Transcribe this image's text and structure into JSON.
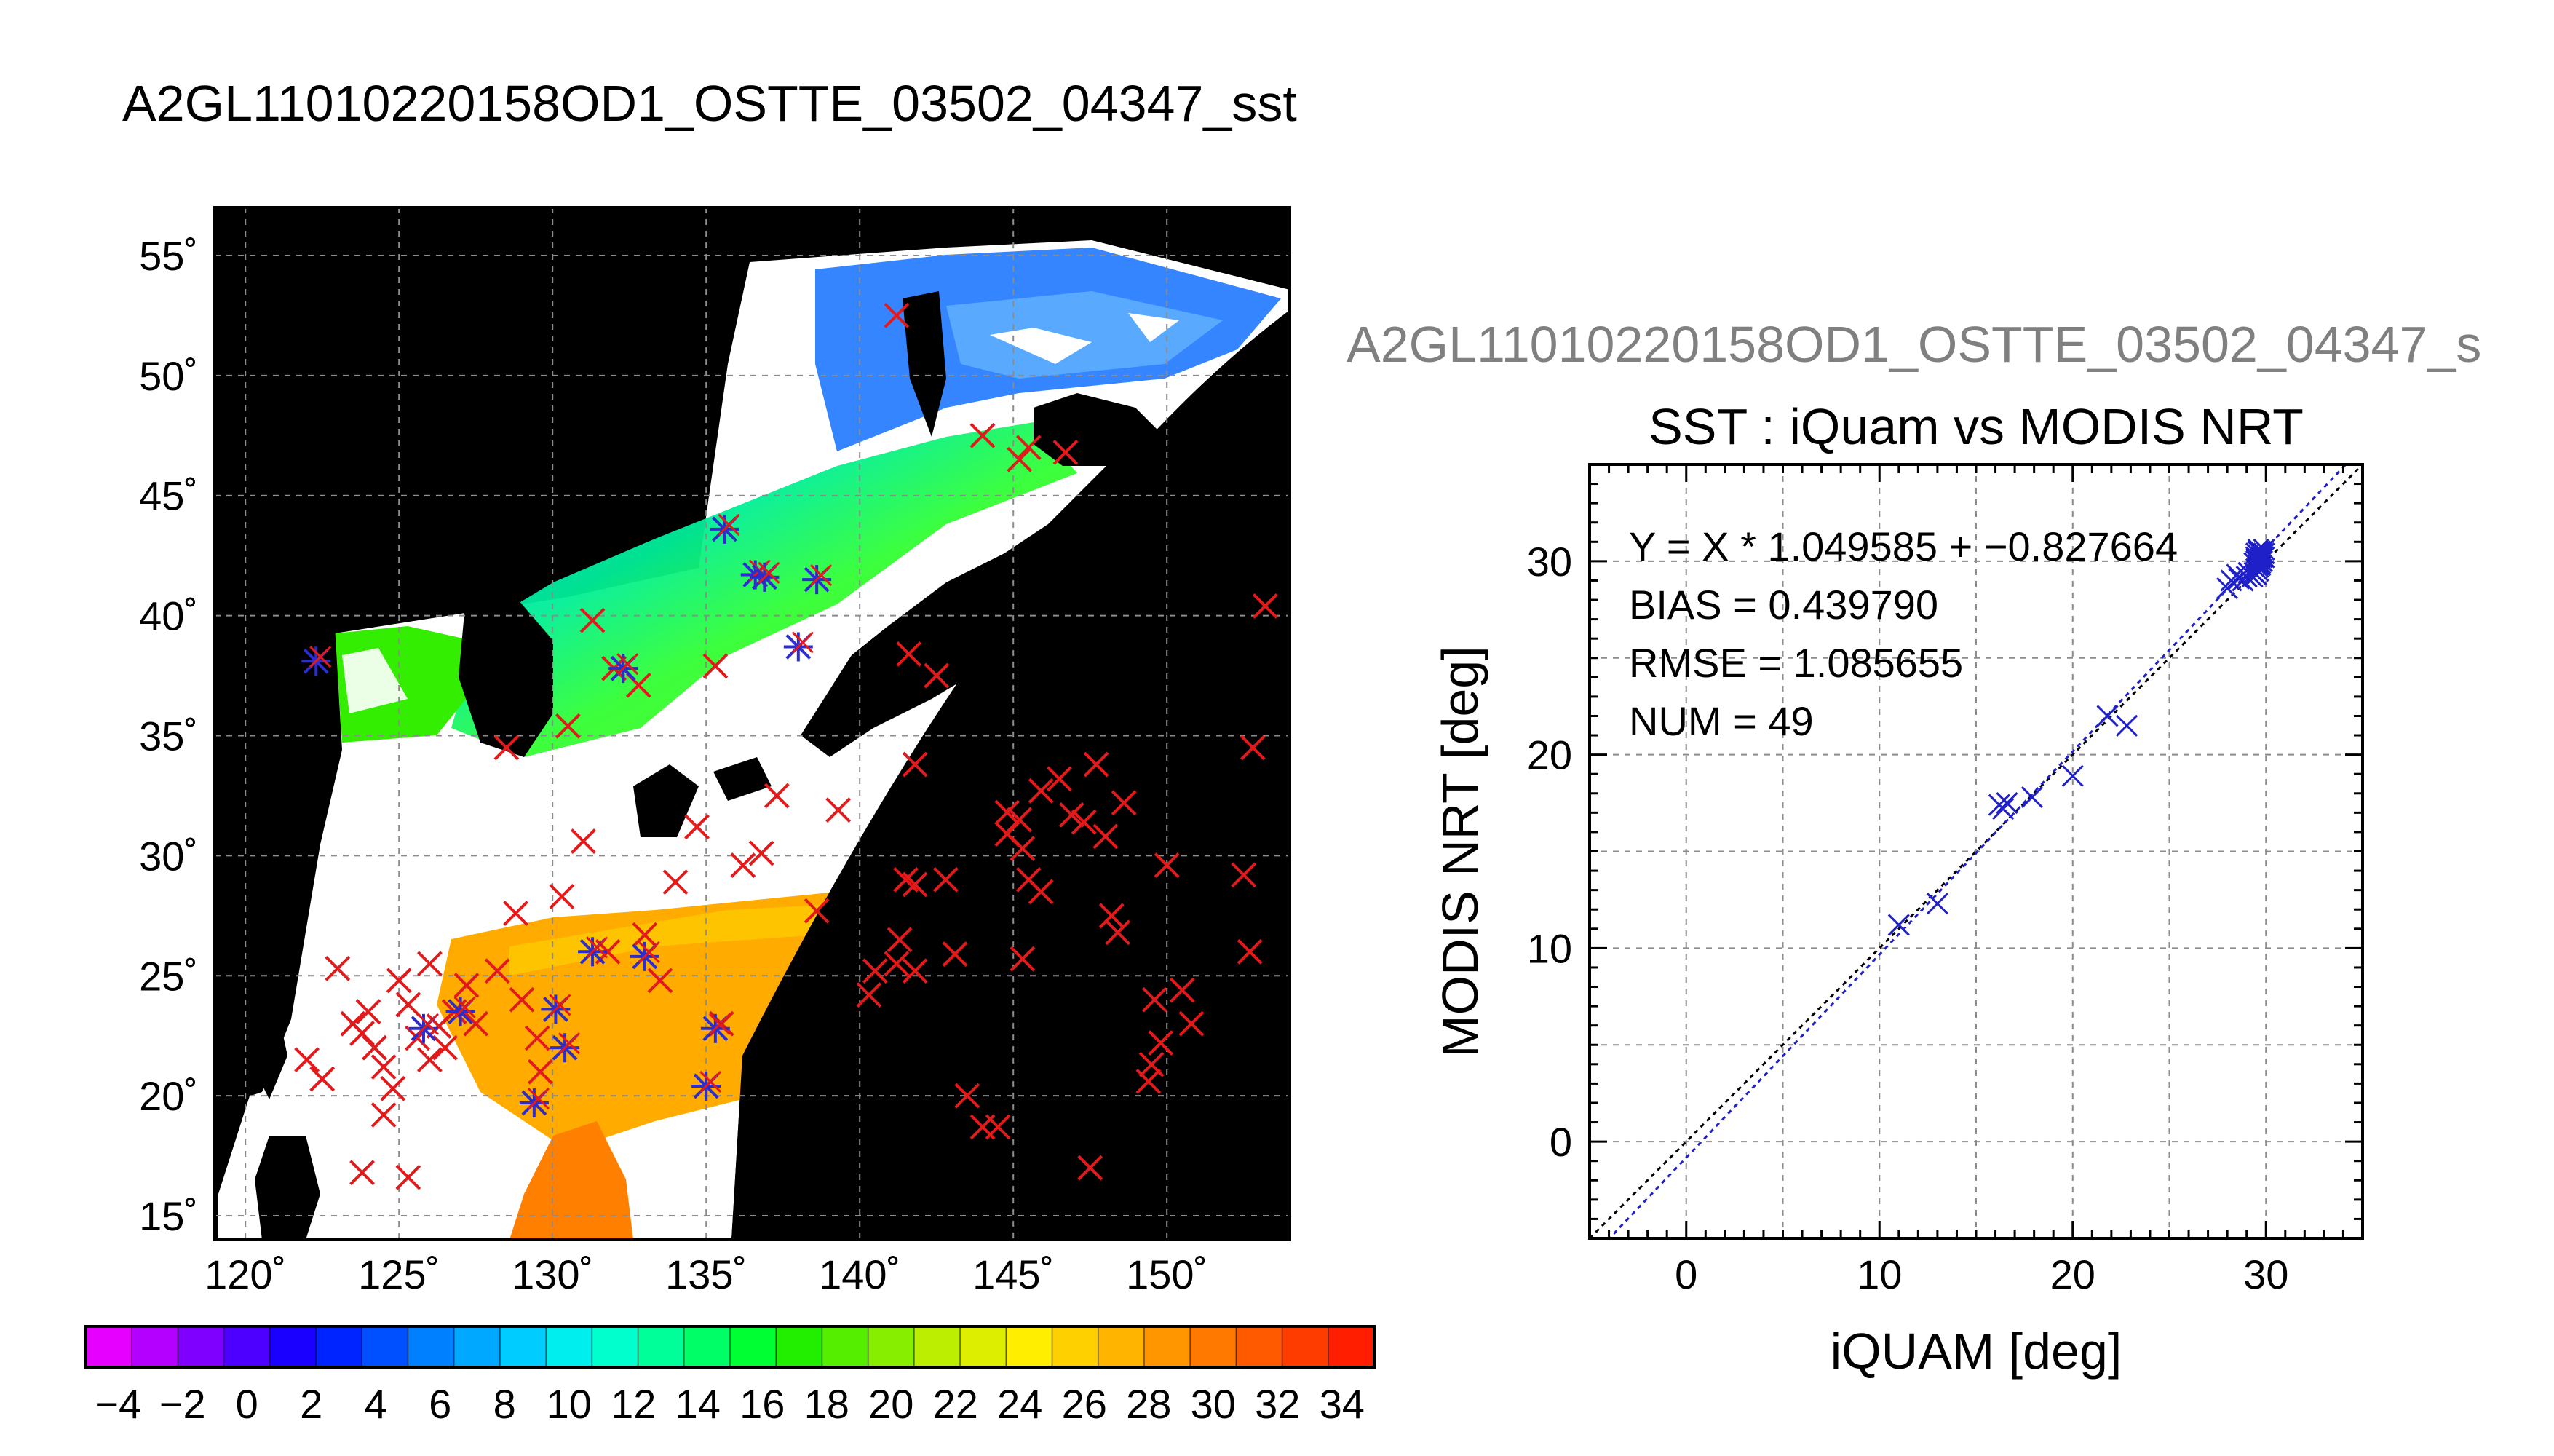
{
  "title": "A2GL11010220158OD1_OSTTE_03502_04347_sst",
  "overflow_title": "A2GL11010220158OD1_OSTTE_03502_04347_s",
  "colors": {
    "land": "#000000",
    "cloud": "#ffffff",
    "grid": "#8c8c8c",
    "marker_red": "#e31a1c",
    "marker_blue": "#2d2dcc",
    "fit_line": "#2020c8",
    "identity_line": "#000000"
  },
  "map": {
    "lon_ticks": [
      "120˚",
      "125˚",
      "130˚",
      "135˚",
      "140˚",
      "145˚",
      "150˚"
    ],
    "lat_ticks": [
      "55˚",
      "50˚",
      "45˚",
      "40˚",
      "35˚",
      "30˚",
      "25˚",
      "20˚",
      "15˚"
    ],
    "lon_values": [
      120,
      125,
      130,
      135,
      140,
      145,
      150
    ],
    "lat_values": [
      55,
      50,
      45,
      40,
      35,
      30,
      25,
      20,
      15
    ],
    "lon_range": [
      119,
      154
    ],
    "lat_range": [
      14,
      57
    ],
    "red_matchups": [
      [
        122.0,
        21.5
      ],
      [
        122.5,
        20.7
      ],
      [
        123.0,
        25.3
      ],
      [
        123.5,
        23.0
      ],
      [
        123.8,
        22.6
      ],
      [
        124.0,
        23.5
      ],
      [
        124.2,
        22.0
      ],
      [
        124.5,
        21.2
      ],
      [
        124.8,
        20.3
      ],
      [
        125.0,
        24.8
      ],
      [
        125.3,
        23.8
      ],
      [
        125.6,
        22.4
      ],
      [
        126.0,
        25.5
      ],
      [
        126.3,
        22.9
      ],
      [
        126.5,
        22.0
      ],
      [
        126.8,
        23.5
      ],
      [
        127.2,
        24.6
      ],
      [
        127.5,
        23.0
      ],
      [
        126.0,
        21.5
      ],
      [
        123.8,
        16.8
      ],
      [
        125.3,
        16.6
      ],
      [
        124.5,
        19.2
      ],
      [
        128.2,
        25.2
      ],
      [
        128.8,
        27.6
      ],
      [
        129.0,
        24.0
      ],
      [
        129.5,
        22.4
      ],
      [
        130.3,
        28.3
      ],
      [
        131.0,
        30.6
      ],
      [
        130.5,
        35.4
      ],
      [
        131.3,
        39.8
      ],
      [
        132.0,
        37.8
      ],
      [
        132.8,
        37.1
      ],
      [
        133.0,
        26.7
      ],
      [
        133.5,
        24.8
      ],
      [
        134.0,
        28.9
      ],
      [
        134.7,
        31.2
      ],
      [
        135.3,
        37.9
      ],
      [
        136.2,
        29.6
      ],
      [
        136.8,
        30.1
      ],
      [
        137.3,
        32.5
      ],
      [
        138.6,
        27.7
      ],
      [
        139.3,
        31.9
      ],
      [
        140.3,
        24.2
      ],
      [
        140.5,
        25.2
      ],
      [
        128.5,
        34.5
      ],
      [
        129.6,
        21.0
      ],
      [
        131.8,
        26.0
      ],
      [
        135.5,
        23.0
      ],
      [
        141.8,
        28.8
      ],
      [
        141.5,
        29.0
      ],
      [
        141.6,
        38.4
      ],
      [
        141.2,
        52.5
      ],
      [
        145.2,
        46.5
      ],
      [
        145.5,
        47.0
      ],
      [
        146.7,
        46.8
      ],
      [
        144.0,
        47.5
      ],
      [
        141.3,
        26.5
      ],
      [
        141.8,
        25.2
      ],
      [
        141.2,
        25.5
      ],
      [
        142.8,
        29.0
      ],
      [
        143.1,
        25.9
      ],
      [
        144.8,
        31.8
      ],
      [
        144.8,
        30.9
      ],
      [
        145.3,
        30.3
      ],
      [
        145.5,
        29.0
      ],
      [
        145.9,
        28.5
      ],
      [
        145.2,
        31.5
      ],
      [
        145.9,
        32.7
      ],
      [
        146.5,
        33.2
      ],
      [
        146.9,
        31.7
      ],
      [
        147.3,
        31.4
      ],
      [
        147.7,
        33.8
      ],
      [
        148.0,
        30.8
      ],
      [
        148.6,
        32.2
      ],
      [
        148.2,
        27.5
      ],
      [
        148.4,
        26.8
      ],
      [
        145.3,
        25.7
      ],
      [
        150.0,
        29.6
      ],
      [
        150.5,
        24.4
      ],
      [
        150.8,
        23.0
      ],
      [
        149.8,
        22.2
      ],
      [
        149.5,
        21.3
      ],
      [
        149.4,
        20.6
      ],
      [
        149.6,
        24.0
      ],
      [
        152.5,
        29.2
      ],
      [
        152.7,
        26.0
      ],
      [
        152.8,
        34.5
      ],
      [
        153.2,
        40.4
      ],
      [
        143.5,
        20.0
      ],
      [
        144.0,
        18.7
      ],
      [
        144.5,
        18.7
      ],
      [
        147.5,
        17.0
      ],
      [
        142.5,
        37.5
      ],
      [
        141.8,
        33.8
      ]
    ],
    "blue_matchups": [
      [
        122.3,
        38.1
      ],
      [
        135.6,
        43.6
      ],
      [
        136.6,
        41.7
      ],
      [
        136.9,
        41.6
      ],
      [
        138.6,
        41.5
      ],
      [
        138.0,
        38.7
      ],
      [
        132.3,
        37.8
      ],
      [
        125.8,
        22.8
      ],
      [
        130.1,
        23.6
      ],
      [
        130.4,
        22.0
      ],
      [
        131.3,
        26.0
      ],
      [
        133.0,
        25.8
      ],
      [
        135.3,
        22.8
      ],
      [
        135.0,
        20.4
      ],
      [
        129.4,
        19.7
      ],
      [
        127.0,
        23.5
      ]
    ]
  },
  "colorbar": {
    "labels": [
      "−4",
      "−2",
      "0",
      "2",
      "4",
      "6",
      "8",
      "10",
      "12",
      "14",
      "16",
      "18",
      "20",
      "22",
      "24",
      "26",
      "28",
      "30",
      "32",
      "34"
    ],
    "min": -5,
    "max": 35,
    "colors": [
      "#e600ff",
      "#b300ff",
      "#8000ff",
      "#4d00ff",
      "#1a00ff",
      "#0024ff",
      "#0050ff",
      "#0080ff",
      "#00a8ff",
      "#00ccff",
      "#00eeee",
      "#00ffcc",
      "#00ff99",
      "#00ff66",
      "#00ff33",
      "#22ee00",
      "#55ee00",
      "#88ee00",
      "#bbee00",
      "#ddee00",
      "#ffee00",
      "#ffd000",
      "#ffb400",
      "#ff9600",
      "#ff7800",
      "#ff5a00",
      "#ff3c00",
      "#ff1e00"
    ]
  },
  "chart_data": {
    "type": "scatter",
    "title": "SST : iQuam vs MODIS NRT",
    "xlabel": "iQUAM [deg]",
    "ylabel": "MODIS NRT [deg]",
    "xlim": [
      -5,
      35
    ],
    "ylim": [
      -5,
      35
    ],
    "xticks": [
      0,
      10,
      20,
      30
    ],
    "yticks": [
      0,
      10,
      20,
      30
    ],
    "xtick_labels": [
      "0",
      "10",
      "20",
      "30"
    ],
    "ytick_labels": [
      "0",
      "10",
      "20",
      "30"
    ],
    "grid": true,
    "annotations": [
      "Y = X * 1.049585 + −0.827664",
      "BIAS = 0.439790",
      "RMSE = 1.085655",
      "NUM = 49"
    ],
    "fit": {
      "slope": 1.049585,
      "intercept": -0.827664
    },
    "series": [
      {
        "marker": "x",
        "x": [
          11.0,
          13.0,
          16.2,
          16.4,
          16.6,
          17.9,
          20.0,
          21.8,
          22.8,
          28.0,
          28.2,
          28.5,
          28.6,
          28.8,
          29.0,
          29.1,
          29.3,
          29.5,
          29.7,
          29.6,
          29.8,
          29.4,
          29.5,
          29.6,
          29.7,
          29.8,
          29.9,
          29.5,
          29.6,
          29.7,
          29.8,
          29.9,
          29.4,
          29.5,
          29.6,
          29.7,
          29.8,
          29.5,
          29.6,
          29.7,
          29.8,
          29.6,
          29.7,
          29.5,
          29.6,
          29.7,
          29.8,
          29.9,
          29.6
        ],
        "y": [
          11.2,
          12.3,
          17.4,
          17.2,
          17.5,
          17.8,
          18.9,
          22.0,
          21.5,
          28.6,
          29.0,
          29.3,
          29.1,
          29.0,
          29.2,
          29.4,
          29.2,
          29.6,
          29.8,
          30.0,
          30.2,
          29.9,
          30.1,
          30.3,
          30.5,
          30.4,
          30.6,
          30.0,
          29.7,
          29.9,
          30.0,
          30.2,
          29.4,
          29.3,
          29.8,
          30.1,
          30.3,
          30.4,
          30.6,
          30.2,
          30.0,
          29.5,
          29.8,
          30.2,
          30.1,
          29.9,
          30.3,
          30.4,
          30.5
        ]
      }
    ]
  }
}
